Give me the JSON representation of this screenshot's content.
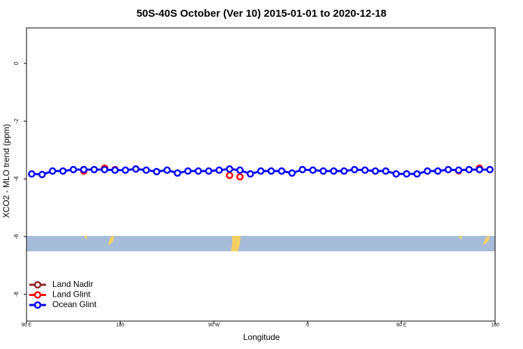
{
  "chart_data": {
    "type": "line",
    "title": "50S-40S October (Ver 10)   2015-01-01 to 2020-12-18",
    "xlabel": "Longitude",
    "ylabel": "XCO2 - MLO trend (ppm)",
    "xlim": [
      90,
      540
    ],
    "ylim": [
      -8.93,
      1.23
    ],
    "xticks": [
      {
        "value": 90,
        "label": "90 E"
      },
      180,
      {
        "value": 270,
        "label": "90 W"
      },
      {
        "value": 360,
        "label": "0"
      },
      {
        "value": 450,
        "label": "90 E"
      },
      {
        "value": 540,
        "label": "180"
      }
    ],
    "yticks": [
      0,
      -2,
      -4,
      -6,
      -8
    ],
    "legend": "bottom-left",
    "series": [
      {
        "name": "Land Nadir",
        "color": "#8b2323",
        "x": [],
        "values": []
      },
      {
        "name": "Land Glint",
        "color": "#ff0000",
        "x": [
          145,
          145,
          165,
          175,
          285,
          295,
          505,
          525,
          535
        ],
        "values": [
          -3.68,
          -3.73,
          -3.63,
          -3.68,
          -3.88,
          -3.93,
          -3.72,
          -3.63,
          -3.68
        ]
      },
      {
        "name": "Ocean Glint",
        "color": "#0000ff",
        "x": [
          95,
          105,
          115,
          125,
          135,
          145,
          155,
          165,
          175,
          185,
          195,
          205,
          215,
          225,
          235,
          245,
          255,
          265,
          275,
          285,
          295,
          305,
          315,
          325,
          335,
          345,
          355,
          365,
          375,
          385,
          395,
          405,
          415,
          425,
          435,
          445,
          455,
          465,
          475,
          485,
          495,
          505,
          515,
          525,
          535
        ],
        "values": [
          -3.83,
          -3.85,
          -3.73,
          -3.73,
          -3.68,
          -3.68,
          -3.68,
          -3.68,
          -3.7,
          -3.7,
          -3.66,
          -3.7,
          -3.75,
          -3.7,
          -3.8,
          -3.73,
          -3.73,
          -3.73,
          -3.7,
          -3.66,
          -3.7,
          -3.83,
          -3.73,
          -3.73,
          -3.73,
          -3.8,
          -3.68,
          -3.7,
          -3.73,
          -3.73,
          -3.73,
          -3.68,
          -3.7,
          -3.73,
          -3.73,
          -3.83,
          -3.83,
          -3.83,
          -3.73,
          -3.73,
          -3.68,
          -3.7,
          -3.68,
          -3.68,
          -3.68
        ]
      }
    ]
  }
}
